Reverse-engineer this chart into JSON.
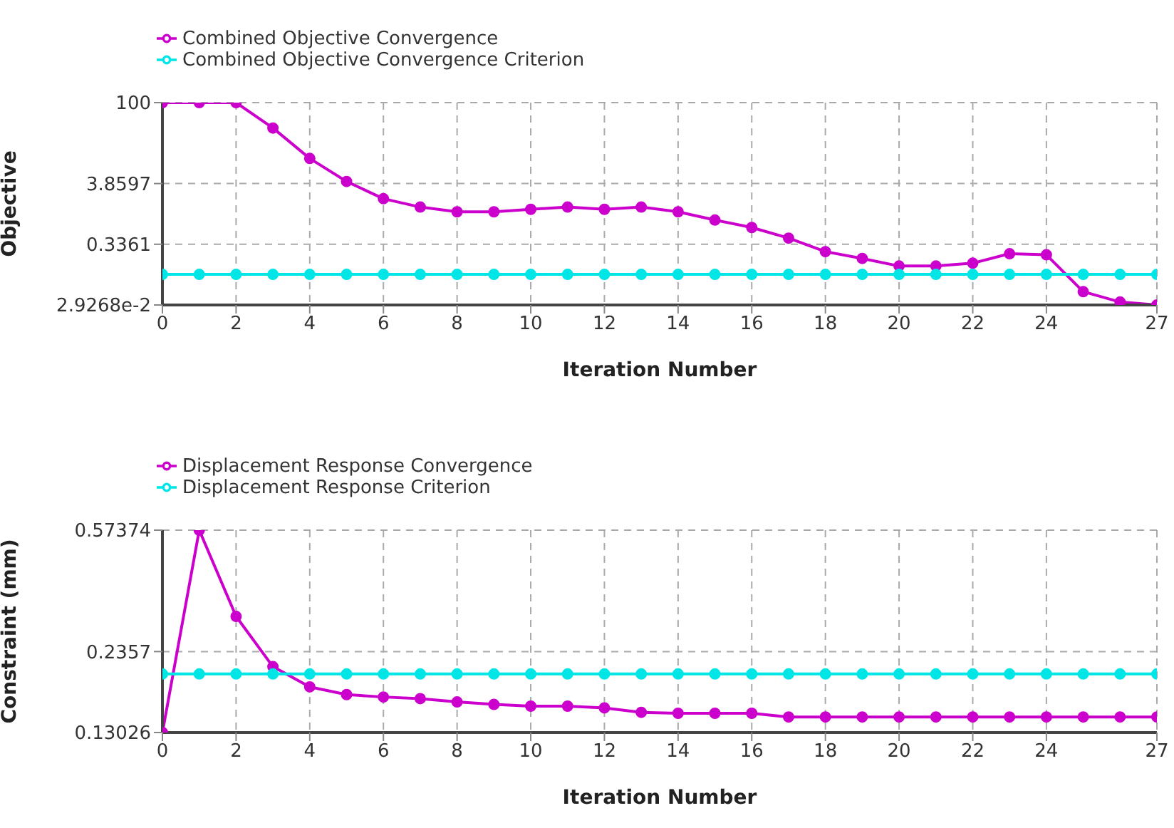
{
  "chart_data": [
    {
      "type": "line",
      "xlabel": "Iteration Number",
      "ylabel": "Objective",
      "log": "y",
      "grid": true,
      "legend": "top left",
      "marker": "circle",
      "line_style": "solid",
      "x": [
        0,
        1,
        2,
        3,
        4,
        5,
        6,
        7,
        8,
        9,
        10,
        11,
        12,
        13,
        14,
        15,
        16,
        17,
        18,
        19,
        20,
        21,
        22,
        23,
        24,
        25,
        26,
        27
      ],
      "xlim": [
        0,
        27
      ],
      "xticks": [
        0,
        2,
        4,
        6,
        8,
        10,
        12,
        14,
        16,
        18,
        20,
        22,
        24,
        27
      ],
      "ylim": [
        0.029268,
        100
      ],
      "yticks": [
        100,
        3.8597,
        0.3361,
        {
          "value": 0.029268,
          "label": "2.9268e-2"
        }
      ],
      "series": [
        {
          "name": "Combined Objective Convergence",
          "color": "#cc00cc",
          "values": [
            100,
            100,
            100,
            36,
            10.6,
            4.2,
            2.1,
            1.5,
            1.24,
            1.24,
            1.37,
            1.5,
            1.37,
            1.5,
            1.24,
            0.89,
            0.66,
            0.43,
            0.25,
            0.19,
            0.14,
            0.14,
            0.157,
            0.23,
            0.22,
            0.05,
            0.033,
            0.029268
          ]
        },
        {
          "name": "Combined Objective Convergence Criterion",
          "color": "#00e5e5",
          "values": [
            0.1,
            0.1,
            0.1,
            0.1,
            0.1,
            0.1,
            0.1,
            0.1,
            0.1,
            0.1,
            0.1,
            0.1,
            0.1,
            0.1,
            0.1,
            0.1,
            0.1,
            0.1,
            0.1,
            0.1,
            0.1,
            0.1,
            0.1,
            0.1,
            0.1,
            0.1,
            0.1,
            0.1
          ]
        }
      ]
    },
    {
      "type": "line",
      "xlabel": "Iteration Number",
      "ylabel": "Constraint (mm)",
      "log": "y",
      "grid": true,
      "legend": "top left",
      "marker": "circle",
      "line_style": "solid",
      "x": [
        0,
        1,
        2,
        3,
        4,
        5,
        6,
        7,
        8,
        9,
        10,
        11,
        12,
        13,
        14,
        15,
        16,
        17,
        18,
        19,
        20,
        21,
        22,
        23,
        24,
        25,
        26,
        27
      ],
      "xlim": [
        0,
        27
      ],
      "xticks": [
        0,
        2,
        4,
        6,
        8,
        10,
        12,
        14,
        16,
        18,
        20,
        22,
        24,
        27
      ],
      "ylim": [
        0.13026,
        0.57374
      ],
      "yticks": [
        0.57374,
        0.2357,
        0.13026
      ],
      "series": [
        {
          "name": "Displacement Response Convergence",
          "color": "#cc00cc",
          "values": [
            0.13026,
            0.57374,
            0.305,
            0.211,
            0.182,
            0.172,
            0.169,
            0.167,
            0.163,
            0.16,
            0.158,
            0.158,
            0.156,
            0.151,
            0.15,
            0.15,
            0.15,
            0.146,
            0.146,
            0.146,
            0.146,
            0.146,
            0.146,
            0.146,
            0.146,
            0.146,
            0.146,
            0.146
          ]
        },
        {
          "name": "Displacement Response Criterion",
          "color": "#00e5e5",
          "values": [
            0.2,
            0.2,
            0.2,
            0.2,
            0.2,
            0.2,
            0.2,
            0.2,
            0.2,
            0.2,
            0.2,
            0.2,
            0.2,
            0.2,
            0.2,
            0.2,
            0.2,
            0.2,
            0.2,
            0.2,
            0.2,
            0.2,
            0.2,
            0.2,
            0.2,
            0.2,
            0.2,
            0.2
          ]
        }
      ]
    }
  ]
}
